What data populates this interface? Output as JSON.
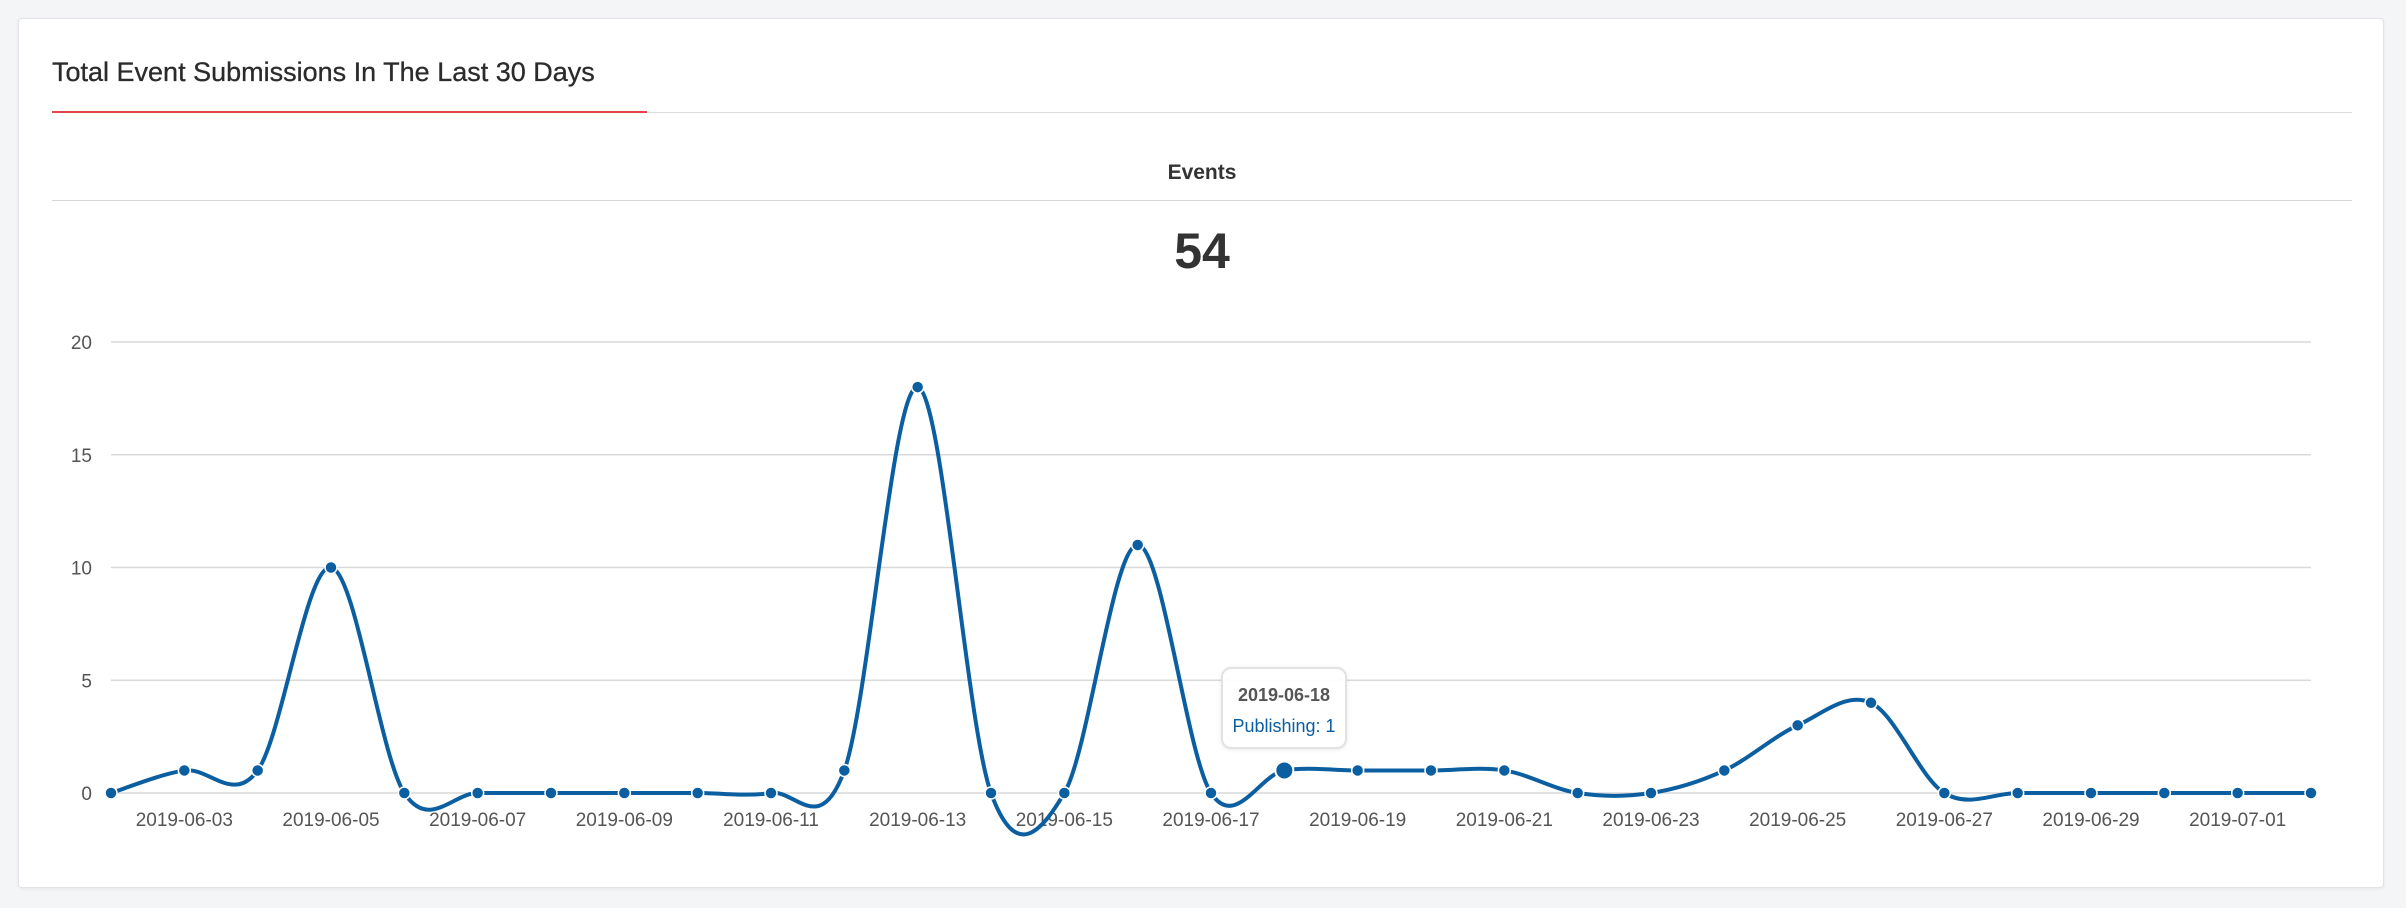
{
  "widget": {
    "title": "Total Event Submissions In The Last 30 Days",
    "section_label": "Events",
    "total": "54"
  },
  "tooltip": {
    "date": "2019-06-18",
    "series": "Publishing",
    "value": 1,
    "text": "Publishing: 1"
  },
  "colors": {
    "series": "#0b5fa0",
    "accent": "#e4434c",
    "grid": "#d9d9d9"
  },
  "chart_data": {
    "type": "line",
    "smooth": true,
    "ylim": [
      0,
      20
    ],
    "yticks": [
      0,
      5,
      10,
      15,
      20
    ],
    "grid": true,
    "legend": "none",
    "x": [
      "2019-06-02",
      "2019-06-03",
      "2019-06-04",
      "2019-06-05",
      "2019-06-06",
      "2019-06-07",
      "2019-06-08",
      "2019-06-09",
      "2019-06-10",
      "2019-06-11",
      "2019-06-12",
      "2019-06-13",
      "2019-06-14",
      "2019-06-15",
      "2019-06-16",
      "2019-06-17",
      "2019-06-18",
      "2019-06-19",
      "2019-06-20",
      "2019-06-21",
      "2019-06-22",
      "2019-06-23",
      "2019-06-24",
      "2019-06-25",
      "2019-06-26",
      "2019-06-27",
      "2019-06-28",
      "2019-06-29",
      "2019-06-30",
      "2019-07-01",
      "2019-07-02"
    ],
    "xtick_labels": [
      "2019-06-03",
      "2019-06-05",
      "2019-06-07",
      "2019-06-09",
      "2019-06-11",
      "2019-06-13",
      "2019-06-15",
      "2019-06-17",
      "2019-06-19",
      "2019-06-21",
      "2019-06-23",
      "2019-06-25",
      "2019-06-27",
      "2019-06-29",
      "2019-07-01"
    ],
    "series": [
      {
        "name": "Publishing",
        "values": [
          0,
          1,
          1,
          10,
          0,
          0,
          0,
          0,
          0,
          0,
          1,
          18,
          0,
          0,
          11,
          0,
          1,
          1,
          1,
          1,
          0,
          0,
          1,
          3,
          4,
          0,
          0,
          0,
          0,
          0,
          0
        ]
      }
    ],
    "highlight": "2019-06-18"
  }
}
